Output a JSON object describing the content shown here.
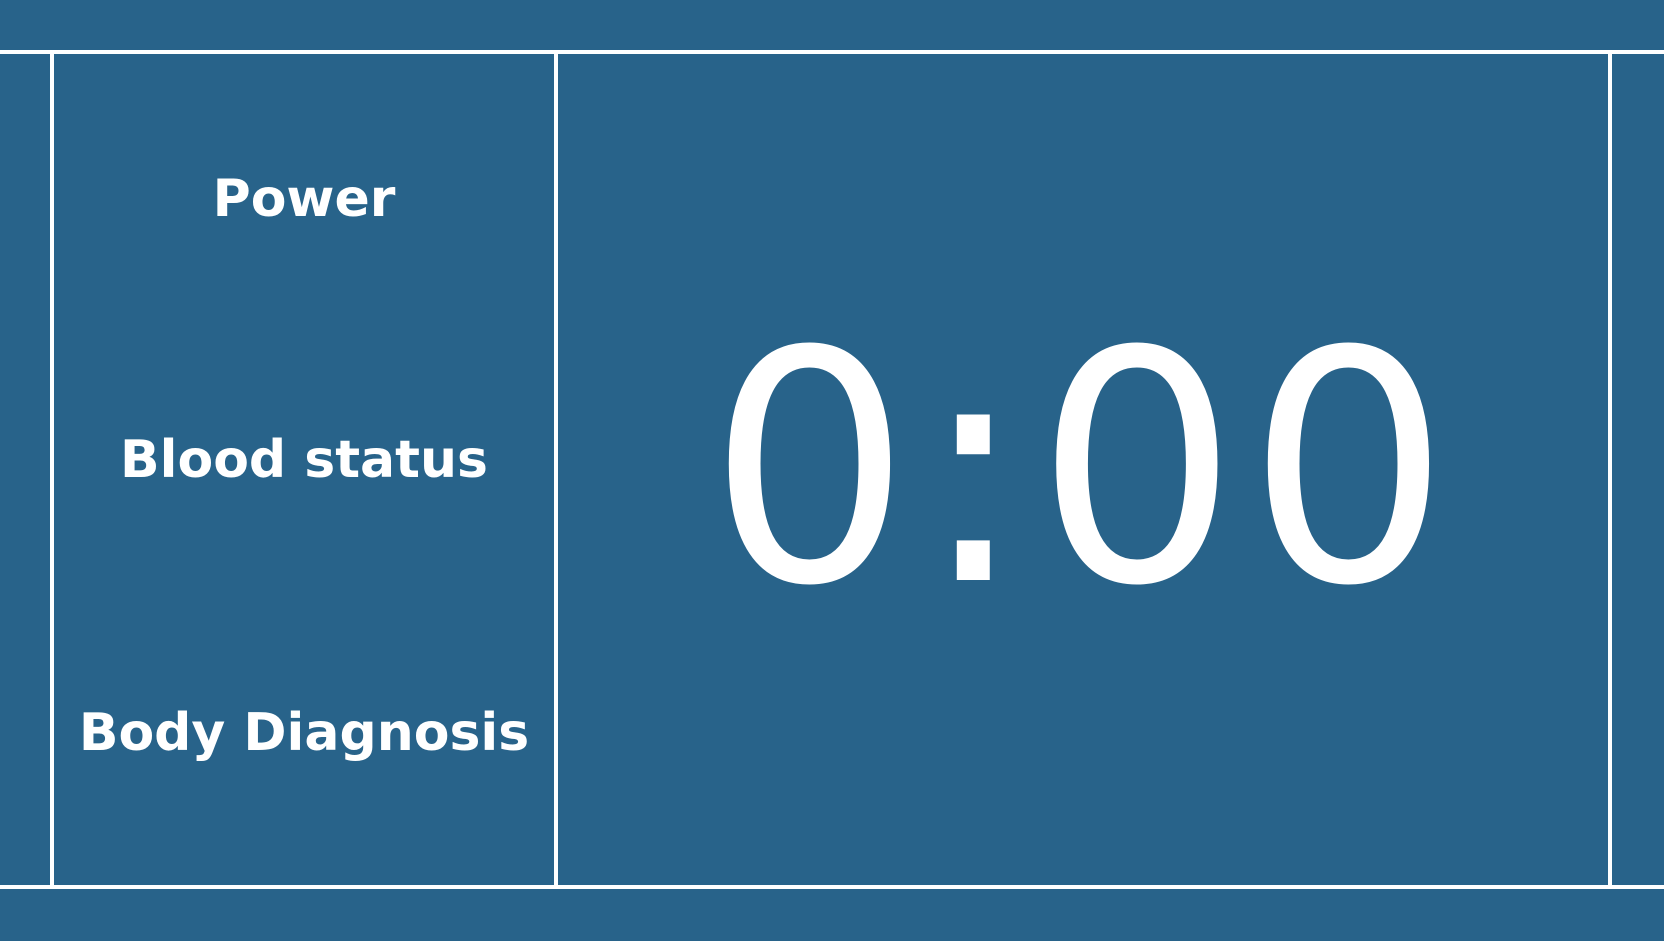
{
  "menu": {
    "items": [
      {
        "label": "Power"
      },
      {
        "label": "Blood status"
      },
      {
        "label": "Body Diagnosis"
      }
    ]
  },
  "timer": {
    "value": "0:00"
  },
  "colors": {
    "background": "#28638a",
    "lines": "#ffffff",
    "text": "#ffffff"
  }
}
